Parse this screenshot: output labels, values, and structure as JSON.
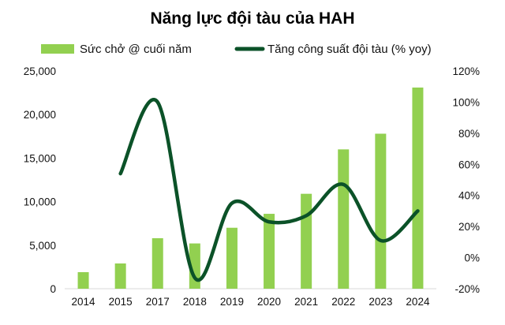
{
  "chart_data": {
    "type": "bar",
    "title": "Năng lực đội tàu của HAH",
    "categories": [
      "2014",
      "2015",
      "2017",
      "2018",
      "2019",
      "2020",
      "2021",
      "2022",
      "2023",
      "2024"
    ],
    "series": [
      {
        "name": "Sức chở @ cuối năm",
        "type": "bar",
        "axis": "left",
        "color": "#92d050",
        "values": [
          1900,
          2900,
          5800,
          5200,
          7000,
          8600,
          10900,
          16000,
          17800,
          23100
        ]
      },
      {
        "name": "Tăng công suất đội tàu (% yoy)",
        "type": "line",
        "axis": "right",
        "color": "#0b5228",
        "smooth": true,
        "values": [
          null,
          0.54,
          1.0,
          -0.13,
          0.35,
          0.23,
          0.27,
          0.47,
          0.11,
          0.3
        ]
      }
    ],
    "y_left": {
      "min": 0,
      "max": 25000,
      "ticks": [
        0,
        5000,
        10000,
        15000,
        20000,
        25000
      ],
      "tick_labels": [
        "0",
        "5,000",
        "10,000",
        "15,000",
        "20,000",
        "25,000"
      ]
    },
    "y_right": {
      "min": -0.2,
      "max": 1.2,
      "ticks": [
        -0.2,
        0,
        0.2,
        0.4,
        0.6,
        0.8,
        1.0,
        1.2
      ],
      "tick_labels": [
        "-20%",
        "0%",
        "20%",
        "40%",
        "60%",
        "80%",
        "100%",
        "120%"
      ]
    },
    "grid": false,
    "legend_position": "top"
  }
}
